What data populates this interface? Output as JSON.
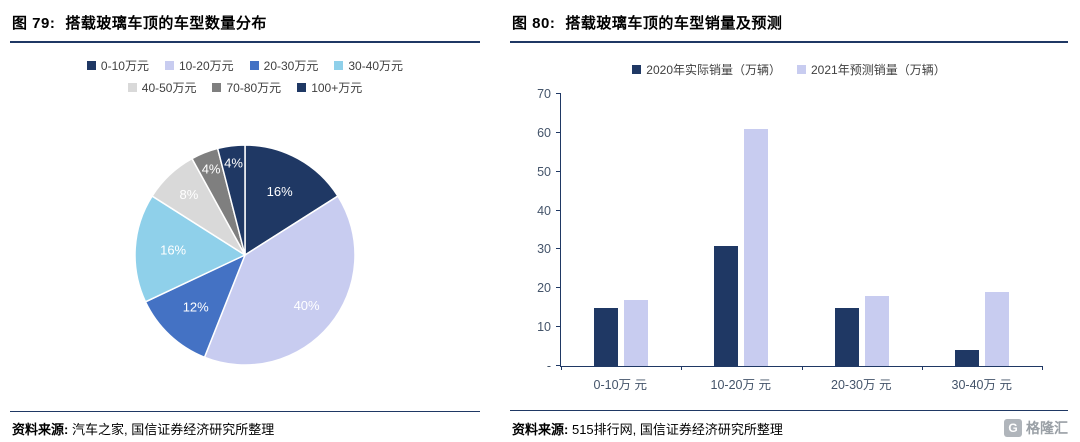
{
  "left_panel": {
    "fig_label": "图  79:",
    "title": "搭载玻璃车顶的车型数量分布",
    "source_label": "资料来源:",
    "source_text": "汽车之家, 国信证券经济研究所整理"
  },
  "right_panel": {
    "fig_label": "图  80:",
    "title": "搭载玻璃车顶的车型销量及预测",
    "source_label": "资料来源:",
    "source_text": "515排行网, 国信证券经济研究所整理",
    "logo_text": "格隆汇",
    "logo_icon_text": "G"
  },
  "colors": {
    "rule_navy": "#1F3864",
    "axis": "#1F3864",
    "tick_text": "#44546A"
  },
  "chart_data": [
    {
      "type": "pie",
      "title": "搭载玻璃车顶的车型数量分布",
      "labels": [
        "0-10万元",
        "10-20万元",
        "20-30万元",
        "30-40万元",
        "40-50万元",
        "70-80万元",
        "100+万元"
      ],
      "values": [
        16,
        40,
        12,
        16,
        8,
        4,
        4
      ],
      "data_labels": [
        "16%",
        "40%",
        "12%",
        "16%",
        "8%",
        "4%",
        "4%"
      ],
      "colors": [
        "#1F3864",
        "#C8CCF0",
        "#4472C4",
        "#8FD0EA",
        "#D9D9D9",
        "#7F7F7F",
        "#1F3864"
      ],
      "legend_position": "top",
      "start_angle_deg": 0,
      "direction": "clockwise"
    },
    {
      "type": "bar",
      "title": "搭载玻璃车顶的车型销量及预测",
      "categories": [
        "0-10万 元",
        "10-20万 元",
        "20-30万 元",
        "30-40万 元"
      ],
      "series": [
        {
          "name": "2020年实际销量（万辆）",
          "color": "#1F3864",
          "values": [
            15,
            31,
            15,
            4
          ]
        },
        {
          "name": "2021年预测销量（万辆）",
          "color": "#C8CCF0",
          "values": [
            17,
            61,
            18,
            19
          ]
        }
      ],
      "ylim": [
        0,
        70
      ],
      "yticks": [
        "-",
        "10",
        "20",
        "30",
        "40",
        "50",
        "60",
        "70"
      ],
      "ytick_values": [
        0,
        10,
        20,
        30,
        40,
        50,
        60,
        70
      ],
      "grid": false,
      "legend_position": "top"
    }
  ]
}
